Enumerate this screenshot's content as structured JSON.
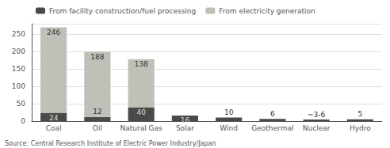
{
  "chart_data": {
    "type": "bar",
    "stacked": true,
    "data_labels": true,
    "grid": true,
    "legend": "upper left",
    "categories": [
      "Coal",
      "Oil",
      "Natural Gas",
      "Solar",
      "Wind",
      "Geothermal",
      "Nuclear",
      "Hydro"
    ],
    "series": [
      {
        "name": "From facility construction/fuel processing",
        "color": "#4a4a4a",
        "values": [
          24,
          12,
          40,
          16,
          10,
          6,
          4.5,
          5
        ],
        "value_labels": [
          "24",
          "12",
          "40",
          "16",
          "10",
          "6",
          "~3-6",
          "5"
        ]
      },
      {
        "name": "From electricity generation",
        "color": "#c0c0b8",
        "values": [
          246,
          188,
          138,
          0,
          0,
          0,
          0,
          0
        ],
        "value_labels": [
          "246",
          "188",
          "138",
          null,
          null,
          null,
          null,
          null
        ]
      }
    ],
    "ylim": [
      0,
      280
    ],
    "yticks": [
      0,
      50,
      100,
      150,
      200,
      250
    ],
    "source": "Source: Central Research Institute of Electric Power Industry/Japan"
  }
}
